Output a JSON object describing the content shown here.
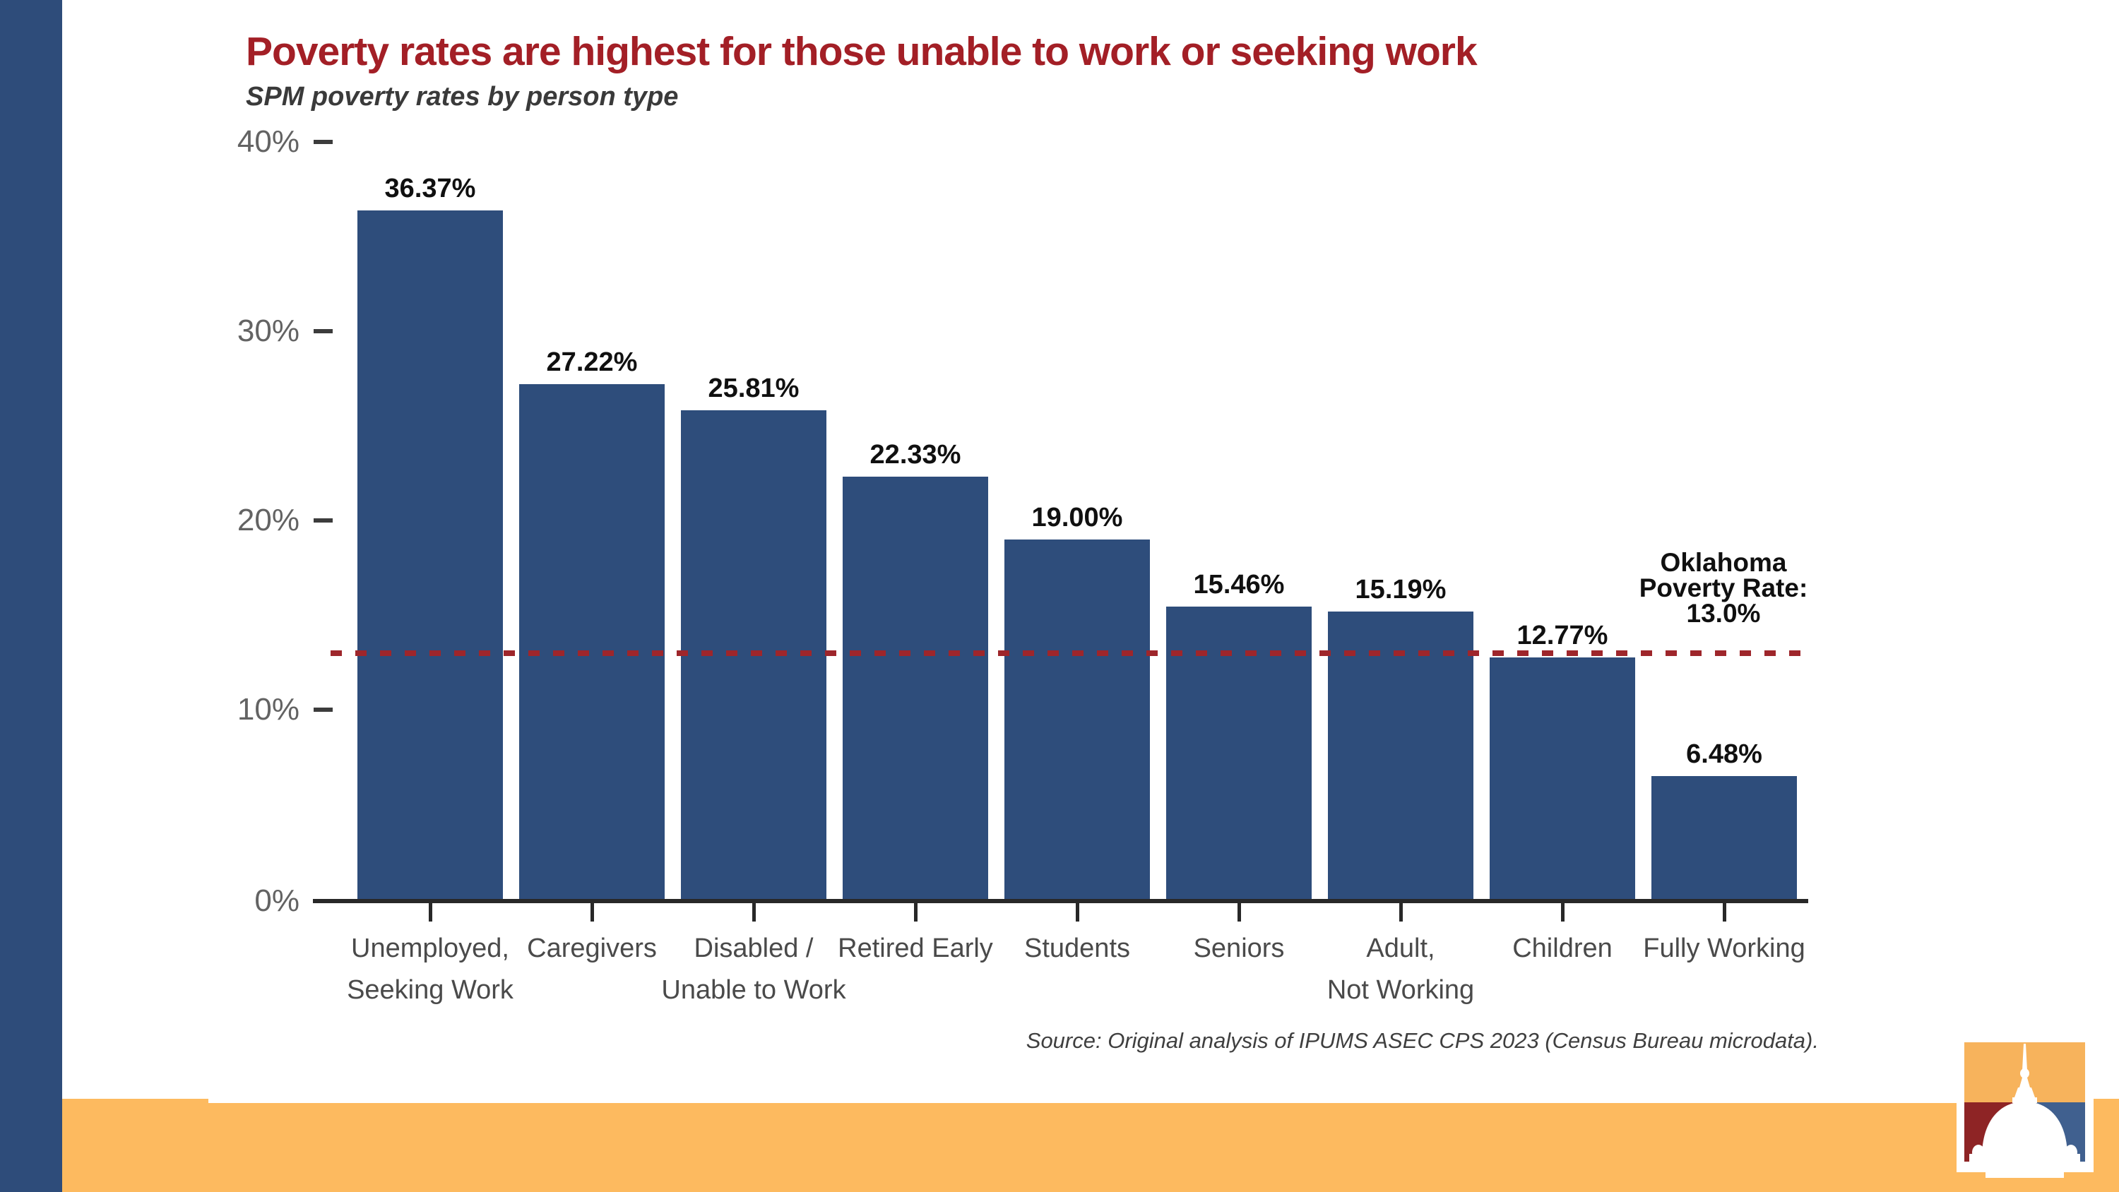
{
  "page": {
    "background": "#ffffff",
    "accent_bar_color": "#2E4C7A",
    "footer_band_color": "#FDBA5F"
  },
  "header": {
    "title": "Poverty rates are highest for those unable to work or seeking work",
    "title_color": "#A31F26",
    "subtitle": "SPM poverty rates by person type"
  },
  "chart_data": {
    "type": "bar",
    "title": "Poverty rates are highest for those unable to work or seeking work",
    "subtitle": "SPM poverty rates by person type",
    "categories": [
      "Unemployed,\nSeeking Work",
      "Caregivers",
      "Disabled /\nUnable to Work",
      "Retired Early",
      "Students",
      "Seniors",
      "Adult,\nNot Working",
      "Children",
      "Fully Working"
    ],
    "values": [
      36.37,
      27.22,
      25.81,
      22.33,
      19.0,
      15.46,
      15.19,
      12.77,
      6.48
    ],
    "value_labels": [
      "36.37%",
      "27.22%",
      "25.81%",
      "22.33%",
      "19.00%",
      "15.46%",
      "15.19%",
      "12.77%",
      "6.48%"
    ],
    "bar_color": "#2E4D7B",
    "xlabel": "",
    "ylabel": "",
    "ylim": [
      0,
      40
    ],
    "yticks": [
      10,
      20,
      30,
      40
    ],
    "ytick_labels": [
      "10%",
      "20%",
      "30%",
      "40%"
    ],
    "ytick_zero_label": "0%",
    "grid": false,
    "legend": false,
    "reference_line": {
      "value": 13.0,
      "label": "Oklahoma\nPoverty Rate:\n13.0%",
      "color": "#9E262B",
      "style": "dashed"
    }
  },
  "source": {
    "text": "Source: Original analysis of IPUMS ASEC CPS 2023 (Census Bureau microdata)."
  },
  "logo": {
    "name": "capitol-dome-logo",
    "top_color": "#F7B35C",
    "bottom_left_color": "#8E2425",
    "bottom_right_color": "#40608F",
    "dome_color": "#FFFFFF"
  }
}
